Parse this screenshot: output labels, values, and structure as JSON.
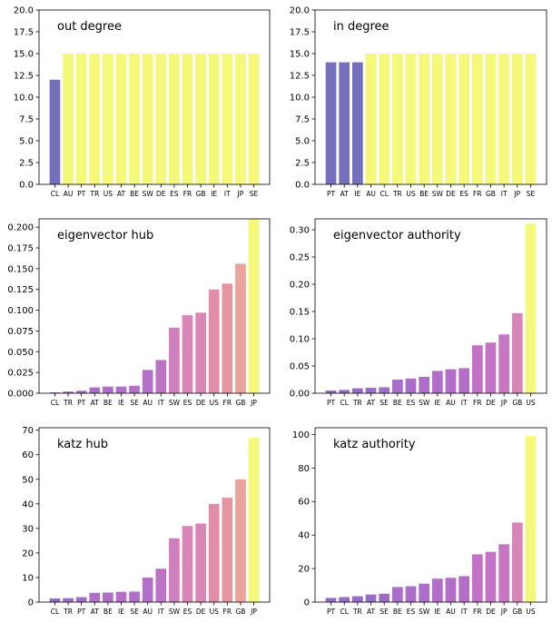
{
  "chart_data": [
    {
      "type": "bar",
      "title": "out degree",
      "categories": [
        "CL",
        "AU",
        "PT",
        "TR",
        "US",
        "AT",
        "BE",
        "SW",
        "DE",
        "ES",
        "FR",
        "GB",
        "IE",
        "IT",
        "JP",
        "SE"
      ],
      "values": [
        12,
        15,
        15,
        15,
        15,
        15,
        15,
        15,
        15,
        15,
        15,
        15,
        15,
        15,
        15,
        15
      ],
      "ylim": [
        0,
        20
      ],
      "yticks": [
        "0.0",
        "2.5",
        "5.0",
        "7.5",
        "10.0",
        "12.5",
        "15.0",
        "17.5",
        "20.0"
      ],
      "colors": [
        "#7570bb",
        "#f5f97a",
        "#f5f97a",
        "#f5f97a",
        "#f5f97a",
        "#f5f97a",
        "#f5f97a",
        "#f5f97a",
        "#f5f97a",
        "#f5f97a",
        "#f5f97a",
        "#f5f97a",
        "#f5f97a",
        "#f5f97a",
        "#f5f97a",
        "#f5f97a"
      ],
      "grid": false
    },
    {
      "type": "bar",
      "title": "in degree",
      "categories": [
        "PT",
        "AT",
        "IE",
        "AU",
        "CL",
        "TR",
        "US",
        "BE",
        "SW",
        "DE",
        "ES",
        "FR",
        "GB",
        "IT",
        "JP",
        "SE"
      ],
      "values": [
        14,
        14,
        14,
        15,
        15,
        15,
        15,
        15,
        15,
        15,
        15,
        15,
        15,
        15,
        15,
        15
      ],
      "ylim": [
        0,
        20
      ],
      "yticks": [
        "0.0",
        "2.5",
        "5.0",
        "7.5",
        "10.0",
        "12.5",
        "15.0",
        "17.5",
        "20.0"
      ],
      "colors": [
        "#7570bb",
        "#7570bb",
        "#7570bb",
        "#f5f97a",
        "#f5f97a",
        "#f5f97a",
        "#f5f97a",
        "#f5f97a",
        "#f5f97a",
        "#f5f97a",
        "#f5f97a",
        "#f5f97a",
        "#f5f97a",
        "#f5f97a",
        "#f5f97a",
        "#f5f97a"
      ],
      "grid": false
    },
    {
      "type": "bar",
      "title": "eigenvector hub",
      "categories": [
        "CL",
        "TR",
        "PT",
        "AT",
        "BE",
        "IE",
        "SE",
        "AU",
        "IT",
        "SW",
        "ES",
        "DE",
        "US",
        "FR",
        "GB",
        "JP"
      ],
      "values": [
        0.001,
        0.002,
        0.003,
        0.007,
        0.008,
        0.008,
        0.009,
        0.028,
        0.04,
        0.079,
        0.094,
        0.097,
        0.125,
        0.132,
        0.156,
        0.21
      ],
      "ylim": [
        0,
        0.21
      ],
      "yticks": [
        "0.000",
        "0.025",
        "0.050",
        "0.075",
        "0.100",
        "0.125",
        "0.150",
        "0.175",
        "0.200"
      ],
      "colors": [
        "#8f6cc4",
        "#9a6ac6",
        "#a46cc8",
        "#ad6ec8",
        "#b06ec8",
        "#b26ec8",
        "#b46ec8",
        "#b470c8",
        "#be72c4",
        "#d07fbe",
        "#d885b8",
        "#da87b8",
        "#e28ea8",
        "#e494a2",
        "#eca49a",
        "#f5f97a"
      ],
      "grid": false
    },
    {
      "type": "bar",
      "title": "eigenvector authority",
      "categories": [
        "PT",
        "CL",
        "TR",
        "AT",
        "SE",
        "BE",
        "ES",
        "SW",
        "IE",
        "AU",
        "IT",
        "FR",
        "DE",
        "JP",
        "GB",
        "US"
      ],
      "values": [
        0.005,
        0.006,
        0.009,
        0.01,
        0.011,
        0.025,
        0.027,
        0.03,
        0.041,
        0.044,
        0.046,
        0.088,
        0.093,
        0.108,
        0.147,
        0.311
      ],
      "ylim": [
        0,
        0.32
      ],
      "yticks": [
        "0.00",
        "0.05",
        "0.10",
        "0.15",
        "0.20",
        "0.25",
        "0.30"
      ],
      "colors": [
        "#8f6cc4",
        "#926cc4",
        "#966cc6",
        "#996cc6",
        "#9c6cc6",
        "#a86ec8",
        "#aa6ec8",
        "#ac6ec8",
        "#b26ec8",
        "#b36ec8",
        "#b46ec8",
        "#c272c6",
        "#c474c4",
        "#c676c4",
        "#d886b8",
        "#f5f97a"
      ],
      "grid": false
    },
    {
      "type": "bar",
      "title": "katz hub",
      "categories": [
        "CL",
        "TR",
        "PT",
        "AT",
        "BE",
        "IE",
        "SE",
        "AU",
        "IT",
        "SW",
        "ES",
        "DE",
        "US",
        "FR",
        "GB",
        "JP"
      ],
      "values": [
        1.5,
        1.6,
        2.0,
        3.8,
        3.9,
        4.2,
        4.3,
        10.0,
        13.6,
        26.0,
        31.0,
        32.0,
        40.0,
        42.5,
        50.0,
        67.0
      ],
      "ylim": [
        0,
        71
      ],
      "yticks": [
        "0",
        "10",
        "20",
        "30",
        "40",
        "50",
        "60",
        "70"
      ],
      "colors": [
        "#8f6cc4",
        "#996cc6",
        "#a36cc8",
        "#ad6ec8",
        "#af6ec8",
        "#b26ec8",
        "#b36ec8",
        "#b470c8",
        "#bd72c6",
        "#d07fbe",
        "#d885b8",
        "#da87b8",
        "#e28ea8",
        "#e494a2",
        "#eca49a",
        "#f5f97a"
      ],
      "grid": false
    },
    {
      "type": "bar",
      "title": "katz authority",
      "categories": [
        "PT",
        "CL",
        "TR",
        "AT",
        "SE",
        "BE",
        "ES",
        "SW",
        "IE",
        "AU",
        "IT",
        "FR",
        "DE",
        "JP",
        "GB",
        "US"
      ],
      "values": [
        2.5,
        3.0,
        3.5,
        4.5,
        5.0,
        9.0,
        9.5,
        11.0,
        14.0,
        14.5,
        15.5,
        28.5,
        30.0,
        34.5,
        47.5,
        99.0
      ],
      "ylim": [
        0,
        104
      ],
      "yticks": [
        "0",
        "20",
        "40",
        "60",
        "80",
        "100"
      ],
      "colors": [
        "#8f6cc4",
        "#926cc4",
        "#966cc6",
        "#996cc6",
        "#9c6cc6",
        "#a86ec8",
        "#aa6ec8",
        "#ac6ec8",
        "#b26ec8",
        "#b36ec8",
        "#b46ec8",
        "#c272c6",
        "#c474c4",
        "#c676c4",
        "#d886b8",
        "#f5f97a"
      ],
      "grid": false
    }
  ]
}
